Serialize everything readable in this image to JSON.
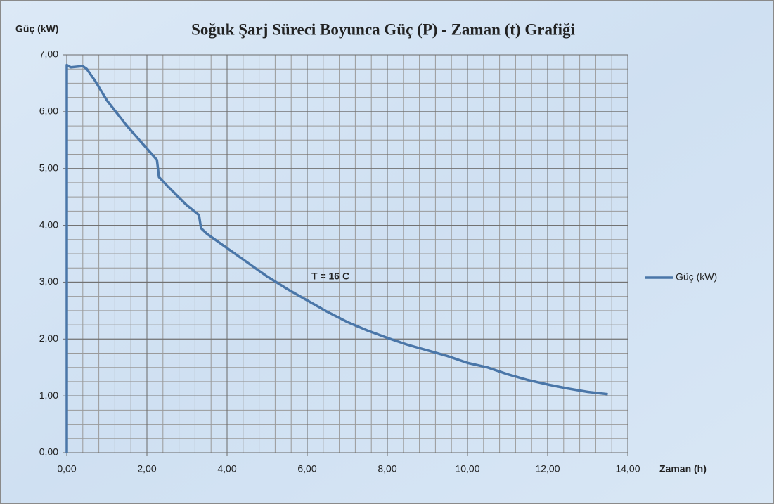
{
  "chart_data": {
    "type": "line",
    "title": "Soğuk Şarj Süreci Boyunca Güç (P) - Zaman (t) Grafiği",
    "y_label": "Güç (kW)",
    "x_label": "Zaman (h)",
    "annotation": "T = 16 C",
    "x": [
      0,
      0,
      0.1,
      0.4,
      0.5,
      0.7,
      1.0,
      1.5,
      2.0,
      2.25,
      2.3,
      2.5,
      3.0,
      3.3,
      3.35,
      3.5,
      4.0,
      4.5,
      5.0,
      5.5,
      6.0,
      6.5,
      7.0,
      7.5,
      8.0,
      8.5,
      9.0,
      9.5,
      10.0,
      10.5,
      11.0,
      11.5,
      12.0,
      12.5,
      13.0,
      13.5
    ],
    "series": [
      {
        "name": "Güç (kW)",
        "color": "#4a76a8",
        "values": [
          0,
          6.82,
          6.78,
          6.8,
          6.75,
          6.55,
          6.2,
          5.75,
          5.35,
          5.15,
          4.85,
          4.7,
          4.35,
          4.18,
          3.95,
          3.85,
          3.6,
          3.35,
          3.1,
          2.88,
          2.68,
          2.48,
          2.3,
          2.15,
          2.02,
          1.9,
          1.8,
          1.7,
          1.58,
          1.5,
          1.38,
          1.28,
          1.2,
          1.13,
          1.07,
          1.03
        ]
      }
    ],
    "xlim": [
      0,
      14
    ],
    "ylim": [
      0,
      7
    ],
    "xticks": [
      {
        "value": 0,
        "label": "0,00"
      },
      {
        "value": 2,
        "label": "2,00"
      },
      {
        "value": 4,
        "label": "4,00"
      },
      {
        "value": 6,
        "label": "6,00"
      },
      {
        "value": 8,
        "label": "8,00"
      },
      {
        "value": 10,
        "label": "10,00"
      },
      {
        "value": 12,
        "label": "12,00"
      },
      {
        "value": 14,
        "label": "14,00"
      }
    ],
    "yticks": [
      {
        "value": 0,
        "label": "0,00"
      },
      {
        "value": 1,
        "label": "1,00"
      },
      {
        "value": 2,
        "label": "2,00"
      },
      {
        "value": 3,
        "label": "3,00"
      },
      {
        "value": 4,
        "label": "4,00"
      },
      {
        "value": 5,
        "label": "5,00"
      },
      {
        "value": 6,
        "label": "6,00"
      },
      {
        "value": 7,
        "label": "7,00"
      }
    ],
    "grid": true,
    "minor_grid": {
      "x": 0.4,
      "y": 0.25
    },
    "legend": "right"
  }
}
